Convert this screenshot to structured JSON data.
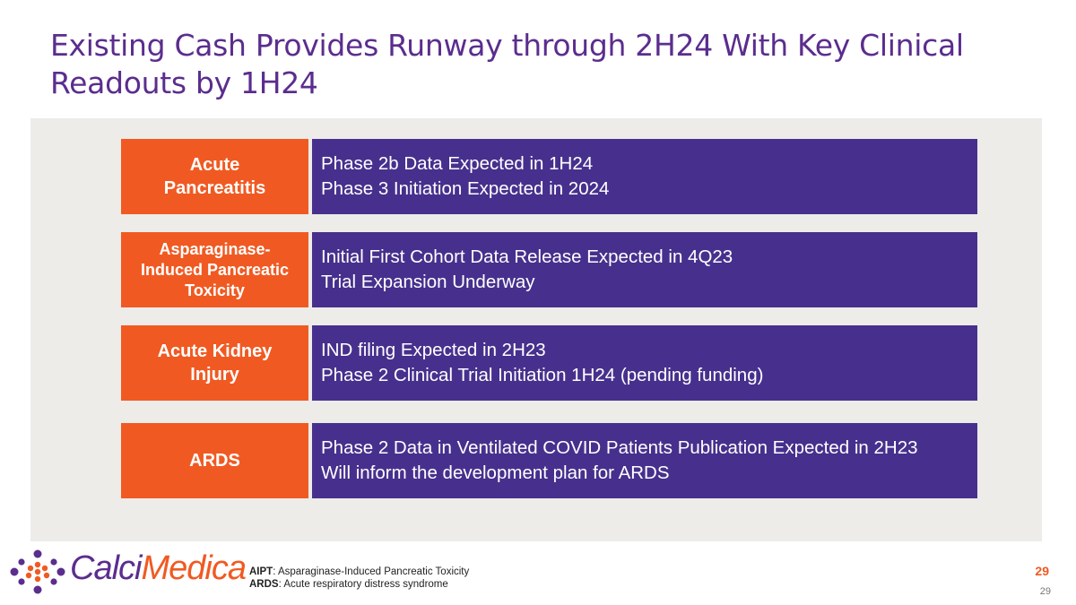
{
  "slide": {
    "title": "Existing Cash Provides Runway through 2H24 With Key Clinical Readouts by 1H24",
    "rows": [
      {
        "label": "Acute Pancreatitis",
        "lines": [
          "Phase 2b Data Expected in 1H24",
          "Phase 3 Initiation Expected in 2024"
        ]
      },
      {
        "label": "Asparaginase-Induced Pancreatic Toxicity",
        "lines": [
          "Initial First Cohort Data Release Expected in 4Q23",
          "Trial Expansion Underway"
        ]
      },
      {
        "label": "Acute Kidney Injury",
        "lines": [
          "IND filing Expected in 2H23",
          "Phase 2 Clinical Trial Initiation 1H24 (pending funding)"
        ]
      },
      {
        "label": "ARDS",
        "lines": [
          "Phase 2 Data in Ventilated COVID Patients Publication Expected in 2H23",
          "Will inform the development plan for ARDS"
        ]
      }
    ]
  },
  "footer": {
    "abbr1_term": "AIPT",
    "abbr1_def": ": Asparaginase-Induced Pancreatic Toxicity",
    "abbr2_term": "ARDS",
    "abbr2_def": ": Acute respiratory distress syndrome",
    "page_number": "29",
    "page_number_small": "29"
  },
  "logo": {
    "part1": "Calci",
    "part2": "Medica"
  },
  "colors": {
    "title": "#5b2d8e",
    "label_bg": "#f05a22",
    "desc_bg": "#47308d",
    "panel_bg": "#edece9"
  }
}
